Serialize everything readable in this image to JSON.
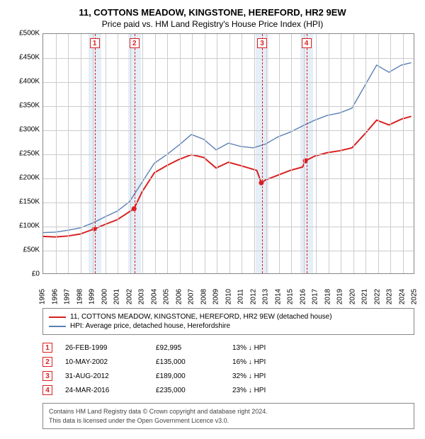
{
  "titles": {
    "line1": "11, COTTONS MEADOW, KINGSTONE, HEREFORD, HR2 9EW",
    "line2": "Price paid vs. HM Land Registry's House Price Index (HPI)"
  },
  "chart": {
    "type": "line",
    "xlim": [
      1995,
      2025
    ],
    "ylim": [
      0,
      500000
    ],
    "ytick_step": 50000,
    "y_unit_prefix": "£",
    "y_unit_suffix": "K",
    "x_years": [
      1995,
      1996,
      1997,
      1998,
      1999,
      2000,
      2001,
      2002,
      2003,
      2004,
      2005,
      2006,
      2007,
      2008,
      2009,
      2010,
      2011,
      2012,
      2013,
      2014,
      2015,
      2016,
      2017,
      2018,
      2019,
      2020,
      2021,
      2022,
      2023,
      2024,
      2025
    ],
    "background_color": "#ffffff",
    "grid_color": "#cccccc",
    "sale_band_color": "#e6eef7",
    "sale_spine_color": "#d92020",
    "series": [
      {
        "name": "property",
        "label": "11, COTTONS MEADOW, KINGSTONE, HEREFORD, HR2 9EW (detached house)",
        "color": "#d92020",
        "line_width": 2,
        "data": [
          [
            1995,
            77000
          ],
          [
            1996,
            76000
          ],
          [
            1997,
            78000
          ],
          [
            1998,
            82000
          ],
          [
            1999.15,
            92995
          ],
          [
            2000,
            102000
          ],
          [
            2001,
            112000
          ],
          [
            2002.36,
            135000
          ],
          [
            2003,
            170000
          ],
          [
            2004,
            210000
          ],
          [
            2005,
            225000
          ],
          [
            2006,
            238000
          ],
          [
            2007,
            248000
          ],
          [
            2008,
            242000
          ],
          [
            2009,
            220000
          ],
          [
            2010,
            232000
          ],
          [
            2011,
            225000
          ],
          [
            2012.3,
            215000
          ],
          [
            2012.66,
            189000
          ],
          [
            2013,
            195000
          ],
          [
            2014,
            205000
          ],
          [
            2015,
            215000
          ],
          [
            2016.0,
            222000
          ],
          [
            2016.23,
            235000
          ],
          [
            2017,
            245000
          ],
          [
            2018,
            252000
          ],
          [
            2019,
            256000
          ],
          [
            2020,
            262000
          ],
          [
            2021,
            290000
          ],
          [
            2022,
            320000
          ],
          [
            2023,
            310000
          ],
          [
            2024,
            322000
          ],
          [
            2024.8,
            328000
          ]
        ]
      },
      {
        "name": "hpi",
        "label": "HPI: Average price, detached house, Herefordshire",
        "color": "#5a7fb5",
        "line_width": 1.4,
        "data": [
          [
            1995,
            85000
          ],
          [
            1996,
            86000
          ],
          [
            1997,
            90000
          ],
          [
            1998,
            95000
          ],
          [
            1999,
            105000
          ],
          [
            2000,
            118000
          ],
          [
            2001,
            130000
          ],
          [
            2002,
            150000
          ],
          [
            2003,
            190000
          ],
          [
            2004,
            230000
          ],
          [
            2005,
            248000
          ],
          [
            2006,
            268000
          ],
          [
            2007,
            290000
          ],
          [
            2008,
            280000
          ],
          [
            2009,
            258000
          ],
          [
            2010,
            272000
          ],
          [
            2011,
            265000
          ],
          [
            2012,
            262000
          ],
          [
            2013,
            270000
          ],
          [
            2014,
            285000
          ],
          [
            2015,
            295000
          ],
          [
            2016,
            308000
          ],
          [
            2017,
            320000
          ],
          [
            2018,
            330000
          ],
          [
            2019,
            335000
          ],
          [
            2020,
            345000
          ],
          [
            2021,
            390000
          ],
          [
            2022,
            435000
          ],
          [
            2023,
            420000
          ],
          [
            2024,
            435000
          ],
          [
            2024.8,
            440000
          ]
        ]
      }
    ],
    "sales": [
      {
        "n": "1",
        "year_frac": 1999.15,
        "date": "26-FEB-1999",
        "price": "£92,995",
        "diff": "13% ↓ HPI",
        "price_num": 92995
      },
      {
        "n": "2",
        "year_frac": 2002.36,
        "date": "10-MAY-2002",
        "price": "£135,000",
        "diff": "16% ↓ HPI",
        "price_num": 135000
      },
      {
        "n": "3",
        "year_frac": 2012.66,
        "date": "31-AUG-2012",
        "price": "£189,000",
        "diff": "32% ↓ HPI",
        "price_num": 189000
      },
      {
        "n": "4",
        "year_frac": 2016.23,
        "date": "24-MAR-2016",
        "price": "£235,000",
        "diff": "23% ↓ HPI",
        "price_num": 235000
      }
    ]
  },
  "legend": {
    "items": [
      {
        "color": "#d92020",
        "label_path": "chart.series.0.label"
      },
      {
        "color": "#5a7fb5",
        "label_path": "chart.series.1.label"
      }
    ]
  },
  "footer": {
    "line1": "Contains HM Land Registry data © Crown copyright and database right 2024.",
    "line2": "This data is licensed under the Open Government Licence v3.0."
  }
}
